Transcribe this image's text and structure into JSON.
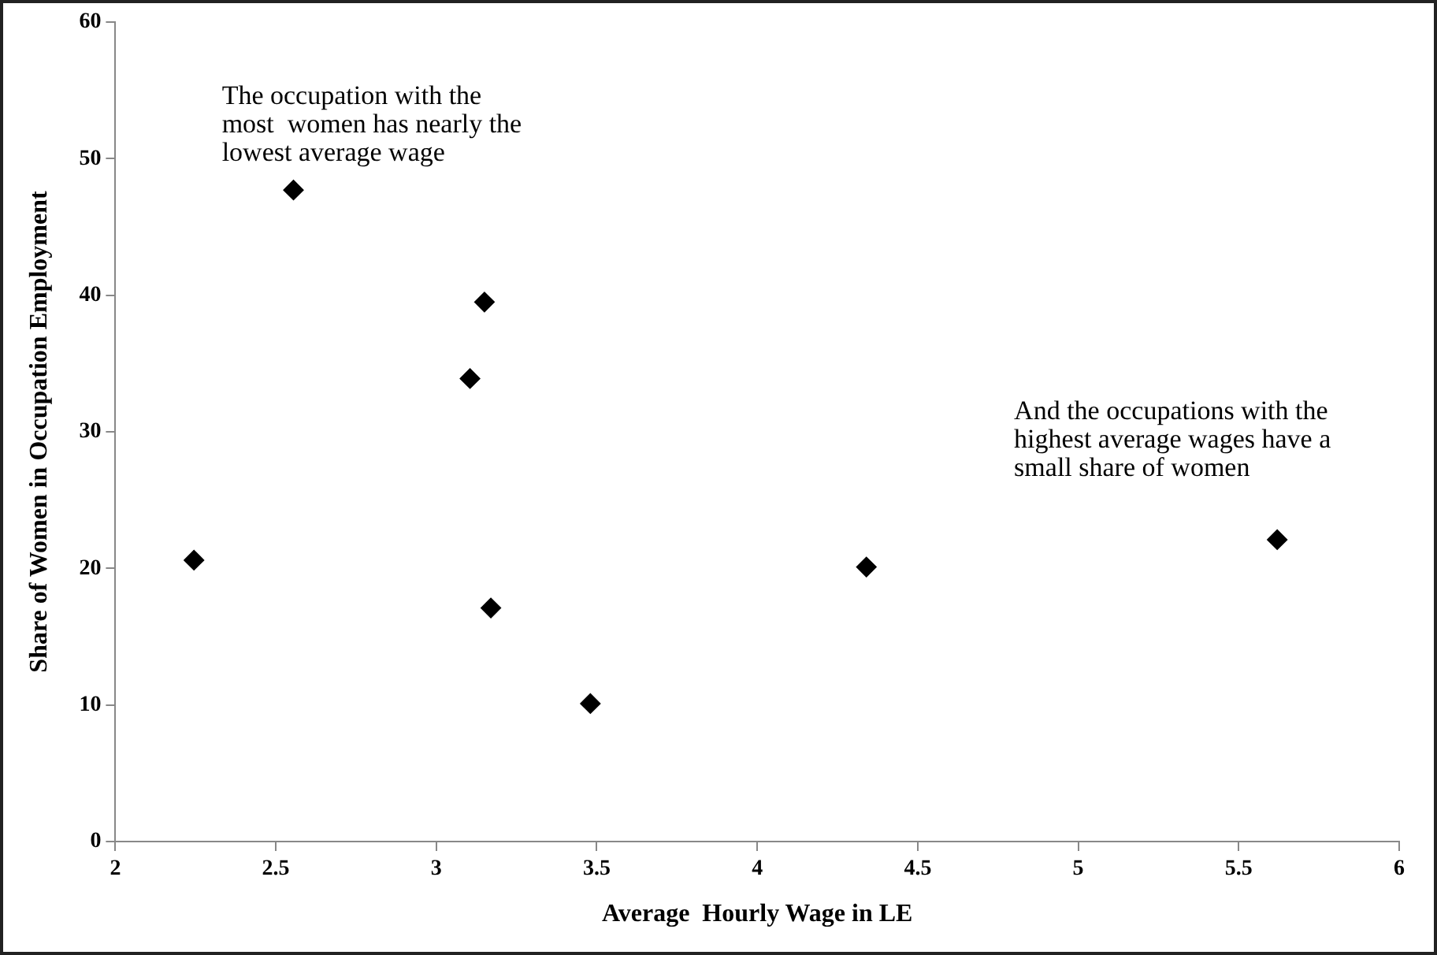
{
  "chart_data": {
    "type": "scatter",
    "xlabel": "Average  Hourly Wage in LE",
    "ylabel": "Share of Women in Occupation Employment",
    "x": [
      2.245,
      2.555,
      3.105,
      3.15,
      3.17,
      3.48,
      4.34,
      5.62
    ],
    "values": [
      20.6,
      47.7,
      33.9,
      39.5,
      17.1,
      10.1,
      20.1,
      22.1
    ],
    "color": "#000000",
    "marker": "diamond",
    "grid": false,
    "legend": false,
    "xlim": [
      2,
      6
    ],
    "xticks": [
      2,
      2.5,
      3,
      3.5,
      4,
      4.5,
      5,
      5.5,
      6
    ],
    "ylim": [
      0,
      60
    ],
    "yticks": [
      0,
      10,
      20,
      30,
      40,
      50,
      60
    ],
    "annotations": [
      "The occupation with the\nmost  women has nearly the\nlowest average wage",
      "And the occupations with the\nhighest average wages have a\nsmall share of women"
    ]
  }
}
